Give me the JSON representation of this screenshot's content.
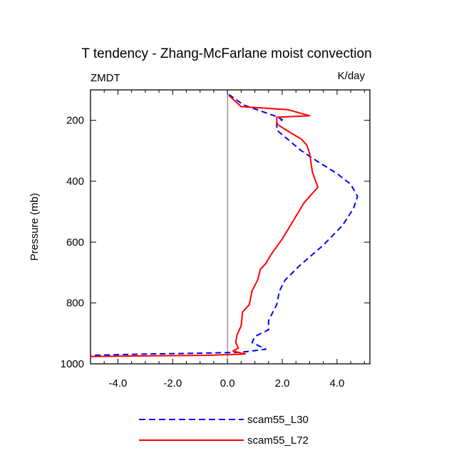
{
  "chart_data": {
    "type": "line",
    "title": "T tendency - Zhang-McFarlane moist convection",
    "left_label": "ZMDT",
    "right_label": "K/day",
    "ylabel": "Pressure (mb)",
    "xlabel": "",
    "xlim": [
      -5,
      5.2
    ],
    "ylim": [
      1000,
      100
    ],
    "y_inverted": true,
    "xticks": [
      {
        "value": -4,
        "label": "-4.0"
      },
      {
        "value": -2,
        "label": "-2.0"
      },
      {
        "value": 0,
        "label": "0.0"
      },
      {
        "value": 2,
        "label": "2.0"
      },
      {
        "value": 4,
        "label": "4.0"
      }
    ],
    "yticks": [
      {
        "value": 200,
        "label": "200"
      },
      {
        "value": 400,
        "label": "400"
      },
      {
        "value": 600,
        "label": "600"
      },
      {
        "value": 800,
        "label": "800"
      },
      {
        "value": 1000,
        "label": "1000"
      }
    ],
    "zero_line": 0,
    "grid": false,
    "legend_position": "bottom-center",
    "series": [
      {
        "name": "scam55_L30",
        "color": "#0000ff",
        "style": "dashed",
        "x": [
          0.05,
          0.6,
          1.8,
          2.0,
          1.8,
          1.8,
          2.3,
          2.7,
          3.2,
          4.0,
          4.5,
          4.75,
          4.6,
          4.2,
          3.5,
          2.6,
          2.1,
          1.9,
          1.8,
          1.5,
          1.5,
          1.0,
          0.9,
          1.4,
          0.5,
          -1.0,
          -3.0,
          -5.0
        ],
        "y": [
          115,
          150,
          188,
          198,
          210,
          232,
          270,
          300,
          330,
          375,
          410,
          450,
          490,
          545,
          610,
          680,
          725,
          760,
          805,
          858,
          888,
          910,
          930,
          952,
          962,
          965,
          968,
          972
        ]
      },
      {
        "name": "scam55_L72",
        "color": "#ff0000",
        "style": "solid",
        "x": [
          0.05,
          0.5,
          2.2,
          3.0,
          1.8,
          1.8,
          2.2,
          2.7,
          2.9,
          3.0,
          3.1,
          3.3,
          2.8,
          2.4,
          2.0,
          1.6,
          1.4,
          1.2,
          1.1,
          0.9,
          0.8,
          0.55,
          0.5,
          0.35,
          0.3,
          0.4,
          0.2,
          0.65,
          -0.8,
          -3.0,
          -5.0
        ],
        "y": [
          118,
          155,
          165,
          185,
          190,
          212,
          235,
          262,
          282,
          310,
          370,
          420,
          470,
          530,
          590,
          640,
          670,
          690,
          725,
          760,
          805,
          830,
          875,
          905,
          930,
          948,
          958,
          968,
          972,
          974,
          976
        ]
      }
    ]
  }
}
